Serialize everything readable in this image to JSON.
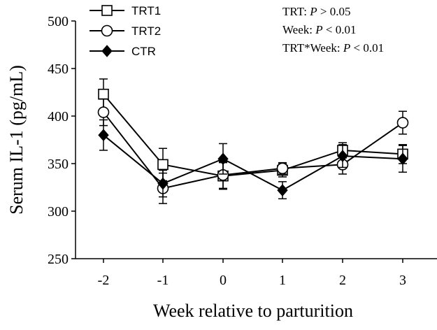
{
  "chart_data": {
    "type": "line",
    "x": [
      -2,
      -1,
      0,
      1,
      2,
      3
    ],
    "x_tick_labels": [
      "-2",
      "-1",
      "0",
      "1",
      "2",
      "3"
    ],
    "xlabel": "Week relative to parturition",
    "ylabel": "Serum IL-1 (pg/mL)",
    "ylim": [
      250,
      500
    ],
    "y_ticks": [
      250,
      300,
      350,
      400,
      450,
      500
    ],
    "y_tick_labels": [
      "250",
      "300",
      "350",
      "400",
      "450",
      "500"
    ],
    "grid": false,
    "legend_position": "top-left",
    "series": [
      {
        "name": "TRT1",
        "marker": "square-open",
        "values": [
          423,
          349,
          337,
          343,
          364,
          360
        ],
        "errors": [
          16,
          17,
          14,
          7,
          8,
          10
        ]
      },
      {
        "name": "TRT2",
        "marker": "circle-open",
        "values": [
          404,
          324,
          338,
          345,
          349,
          393
        ],
        "errors": [
          14,
          16,
          14,
          6,
          10,
          12
        ]
      },
      {
        "name": "CTR",
        "marker": "diamond-filled",
        "values": [
          380,
          329,
          355,
          322,
          358,
          355
        ],
        "errors": [
          16,
          14,
          16,
          9,
          12,
          14
        ]
      }
    ],
    "annotations": [
      {
        "prefix": "TRT: ",
        "p": "P",
        "suffix": " > 0.05"
      },
      {
        "prefix": "Week: ",
        "p": "P",
        "suffix": " < 0.01"
      },
      {
        "prefix": "TRT*Week: ",
        "p": "P",
        "suffix": " < 0.01"
      }
    ]
  }
}
